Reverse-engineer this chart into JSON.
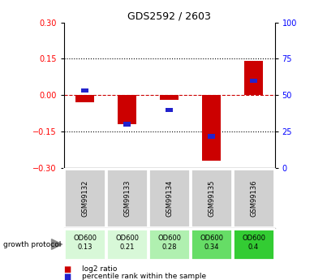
{
  "title": "GDS2592 / 2603",
  "samples": [
    "GSM99132",
    "GSM99133",
    "GSM99134",
    "GSM99135",
    "GSM99136"
  ],
  "log2_ratio": [
    -0.03,
    -0.12,
    -0.02,
    -0.27,
    0.14
  ],
  "percentile_rank": [
    0.02,
    -0.12,
    -0.06,
    -0.17,
    0.06
  ],
  "growth_protocol_labels": [
    "OD600\n0.13",
    "OD600\n0.21",
    "OD600\n0.28",
    "OD600\n0.34",
    "OD600\n0.4"
  ],
  "ylim": [
    -0.3,
    0.3
  ],
  "yticks_left": [
    -0.3,
    -0.15,
    0.0,
    0.15,
    0.3
  ],
  "yticks_right": [
    0,
    25,
    50,
    75,
    100
  ],
  "bar_color": "#cc0000",
  "blue_color": "#2222cc",
  "zero_line_color": "#cc0000",
  "table_bg": "#d0d0d0",
  "gp_bg_colors": [
    "#d8f8d8",
    "#d8f8d8",
    "#b0f0b0",
    "#66dd66",
    "#33cc33"
  ]
}
